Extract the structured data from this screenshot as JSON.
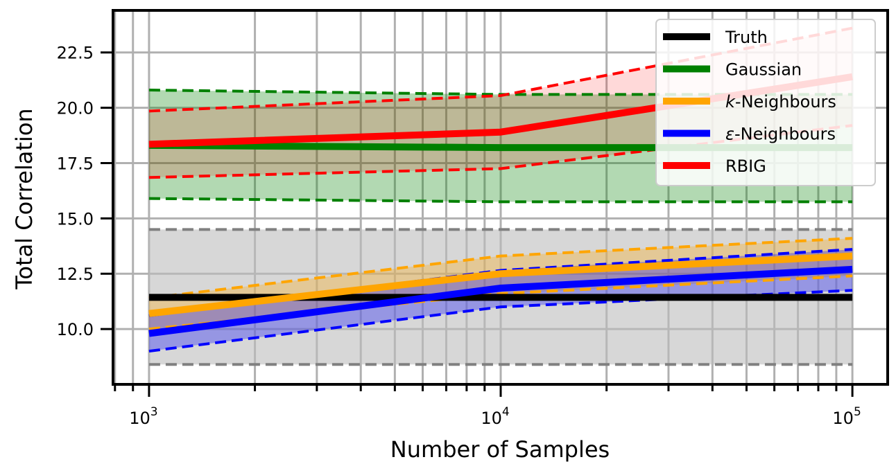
{
  "chart_data": {
    "type": "line",
    "xlabel": "Number of Samples",
    "ylabel": "Total Correlation",
    "x_scale": "log",
    "xlim": [
      790,
      126000
    ],
    "ylim": [
      7.5,
      24.4
    ],
    "x_ticks": [
      {
        "value": 1000,
        "base": "10",
        "exp": "3"
      },
      {
        "value": 10000,
        "base": "10",
        "exp": "4"
      },
      {
        "value": 100000,
        "base": "10",
        "exp": "5"
      }
    ],
    "y_ticks": [
      {
        "value": 10.0,
        "label": "10.0"
      },
      {
        "value": 12.5,
        "label": "12.5"
      },
      {
        "value": 15.0,
        "label": "15.0"
      },
      {
        "value": 17.5,
        "label": "17.5"
      },
      {
        "value": 20.0,
        "label": "20.0"
      },
      {
        "value": 22.5,
        "label": "22.5"
      }
    ],
    "grid": true,
    "legend_position": "top-right",
    "x": [
      1000,
      10000,
      100000
    ],
    "series": [
      {
        "name": "Truth",
        "key": "truth",
        "color": "#000000",
        "mean": [
          11.43,
          11.43,
          11.43
        ],
        "lower": [
          8.4,
          8.4,
          8.4
        ],
        "upper": [
          14.5,
          14.5,
          14.5
        ],
        "band_color": "#bdbdbd",
        "band_line_color": "#808080",
        "band_opacity": 0.6
      },
      {
        "name": "Gaussian",
        "key": "gaussian",
        "color": "#008000",
        "mean": [
          18.3,
          18.2,
          18.2
        ],
        "lower": [
          15.9,
          15.75,
          15.75
        ],
        "upper": [
          20.8,
          20.6,
          20.6
        ],
        "band_color": "#008000",
        "band_line_color": "#008000",
        "band_opacity": 0.3
      },
      {
        "name": "k-Neighbours",
        "name_italic": "k",
        "name_rest": "-Neighbours",
        "key": "kneighbours",
        "color": "#FFA500",
        "mean": [
          10.7,
          12.5,
          13.3
        ],
        "lower": [
          10.0,
          11.6,
          12.4
        ],
        "upper": [
          11.4,
          13.3,
          14.1
        ],
        "band_color": "#FFA500",
        "band_line_color": "#FFA500",
        "band_opacity": 0.3
      },
      {
        "name": "ε-Neighbours",
        "name_italic": "ε",
        "name_rest": "-Neighbours",
        "key": "eneighbours",
        "color": "#0000FF",
        "mean": [
          9.8,
          11.85,
          12.7
        ],
        "lower": [
          9.0,
          11.0,
          11.75
        ],
        "upper": [
          10.6,
          12.65,
          13.6
        ],
        "band_color": "#0000FF",
        "band_line_color": "#0000FF",
        "band_opacity": 0.3
      },
      {
        "name": "RBIG",
        "key": "rbig",
        "color": "#FF0000",
        "mean": [
          18.35,
          18.9,
          21.4
        ],
        "lower": [
          16.85,
          17.25,
          19.2
        ],
        "upper": [
          19.85,
          20.55,
          23.6
        ],
        "band_color": "#FF0000",
        "band_line_color": "#FF0000",
        "band_opacity": 0.15
      }
    ]
  }
}
